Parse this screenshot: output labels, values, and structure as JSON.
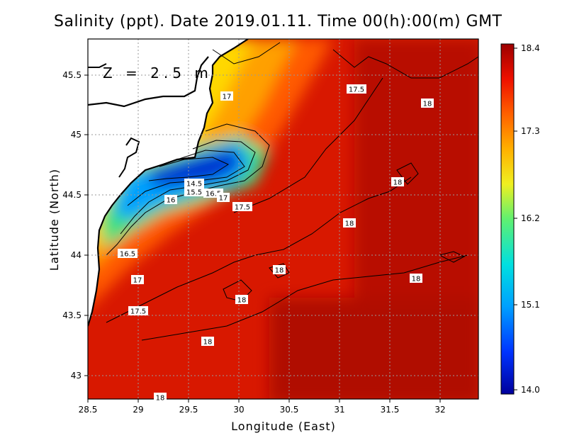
{
  "title": "Salinity (ppt). Date 2019.01.11. Time 00(h):00(m) GMT",
  "depth_label": "Z = 2.5 m",
  "x_axis_label": "Longitude (East)",
  "y_axis_label": "Latitude (North)",
  "x_ticks": [
    "28.5",
    "29",
    "29.5",
    "30",
    "30.5",
    "31",
    "31.5",
    "32"
  ],
  "y_ticks": [
    "45.5",
    "45",
    "44.5",
    "44",
    "43.5",
    "43"
  ],
  "colorbar_ticks": [
    "18.4",
    "17.3",
    "16.2",
    "15.1",
    "14.0"
  ],
  "contour_labels": [
    {
      "text": "17"
    },
    {
      "text": "17.5"
    },
    {
      "text": "18"
    },
    {
      "text": "18"
    },
    {
      "text": "14.5"
    },
    {
      "text": "15.5"
    },
    {
      "text": "16.5"
    },
    {
      "text": "17"
    },
    {
      "text": "16"
    },
    {
      "text": "17.5"
    },
    {
      "text": "18"
    },
    {
      "text": "16.5"
    },
    {
      "text": "17"
    },
    {
      "text": "18"
    },
    {
      "text": "18"
    },
    {
      "text": "18"
    },
    {
      "text": "17.5"
    },
    {
      "text": "18"
    },
    {
      "text": "18"
    }
  ],
  "chart_data": {
    "type": "heatmap",
    "title": "Salinity (ppt). Date 2019.01.11. Time 00(h):00(m) GMT",
    "xlabel": "Longitude (East)",
    "ylabel": "Latitude (North)",
    "xlim": [
      28.5,
      32.4
    ],
    "ylim": [
      42.8,
      45.8
    ],
    "color_range": [
      14.0,
      18.4
    ],
    "colormap": "jet",
    "grid": true,
    "contour_levels": [
      14.5,
      15.5,
      16,
      16.5,
      17,
      17.5,
      18
    ]
  }
}
